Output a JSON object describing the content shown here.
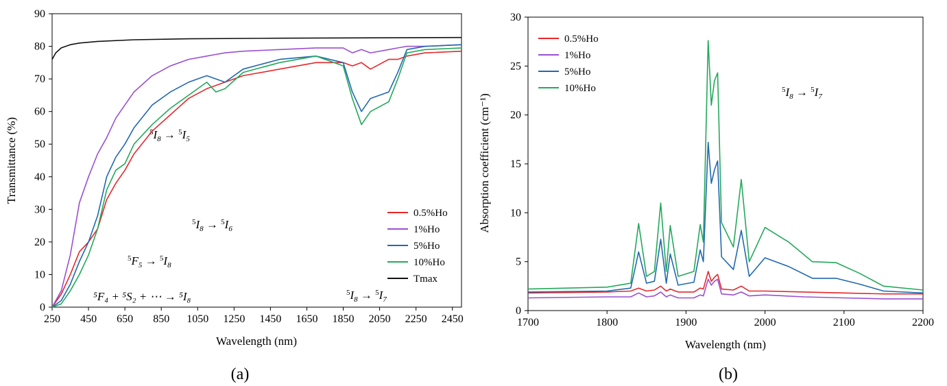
{
  "colors": {
    "red": "#e8262a",
    "purple": "#9a4fd0",
    "blue": "#2068b0",
    "green": "#22a85a",
    "black": "#111111"
  },
  "panels": [
    {
      "label": "(a)",
      "annotations": [
        {
          "id": "i5",
          "pre": "5",
          "sym": "I",
          "sub": "8",
          "arrow": " → ",
          "pre2": "5",
          "sym2": "I",
          "sub2": "5"
        },
        {
          "id": "i6",
          "pre": "5",
          "sym": "I",
          "sub": "8",
          "arrow": " → ",
          "pre2": "5",
          "sym2": "I",
          "sub2": "6"
        },
        {
          "id": "f5",
          "pre": "5",
          "sym": "F",
          "sub": "5",
          "arrow": " → ",
          "pre2": "5",
          "sym2": "I",
          "sub2": "8"
        },
        {
          "id": "f4",
          "text": "⁵F₄ + ⁵S₂ + ⋯ → ⁵I₈"
        },
        {
          "id": "i7",
          "pre": "5",
          "sym": "I",
          "sub": "8",
          "arrow": " → ",
          "pre2": "5",
          "sym2": "I",
          "sub2": "7"
        }
      ]
    },
    {
      "label": "(b)",
      "annotations": [
        {
          "id": "i7b",
          "pre": "5",
          "sym": "I",
          "sub": "8",
          "arrow": " → ",
          "pre2": "5",
          "sym2": "I",
          "sub2": "7"
        }
      ]
    }
  ],
  "chart_data": [
    {
      "type": "line",
      "xlabel": "Wavelength (nm)",
      "ylabel": "Transmittance (%)",
      "xlim": [
        250,
        2500
      ],
      "ylim": [
        0,
        90
      ],
      "xticks": [
        "250",
        "450",
        "650",
        "850",
        "1050",
        "1250",
        "1450",
        "1650",
        "1850",
        "2050",
        "2250",
        "2450"
      ],
      "yticks": [
        "0",
        "10",
        "20",
        "30",
        "40",
        "50",
        "60",
        "70",
        "80",
        "90"
      ],
      "legend_position": "bottom-right",
      "grid": false,
      "series": [
        {
          "name": "0.5%Ho",
          "color": "#e8262a",
          "x": [
            250,
            300,
            350,
            400,
            450,
            500,
            550,
            600,
            650,
            700,
            800,
            900,
            1000,
            1100,
            1150,
            1200,
            1300,
            1500,
            1700,
            1850,
            1900,
            1950,
            2000,
            2100,
            2150,
            2200,
            2300,
            2500
          ],
          "y": [
            0,
            4,
            10,
            17,
            20,
            24,
            33,
            38,
            42,
            47,
            54,
            59,
            64,
            67,
            68,
            69,
            71,
            73,
            75,
            75,
            74,
            75,
            73,
            76,
            76,
            77,
            78,
            78.5
          ]
        },
        {
          "name": "1%Ho",
          "color": "#9a4fd0",
          "x": [
            250,
            300,
            350,
            400,
            450,
            500,
            550,
            600,
            650,
            700,
            800,
            900,
            1000,
            1100,
            1150,
            1200,
            1300,
            1500,
            1700,
            1850,
            1900,
            1950,
            2000,
            2100,
            2150,
            2200,
            2300,
            2500
          ],
          "y": [
            0,
            5,
            16,
            32,
            40,
            47,
            52,
            58,
            62,
            66,
            71,
            74,
            76,
            77,
            77.5,
            78,
            78.5,
            79,
            79.5,
            79.5,
            78,
            79,
            78,
            79,
            79.5,
            80,
            80,
            80.5
          ]
        },
        {
          "name": "5%Ho",
          "color": "#2068b0",
          "x": [
            250,
            300,
            350,
            400,
            450,
            500,
            550,
            600,
            650,
            700,
            800,
            900,
            1000,
            1100,
            1150,
            1200,
            1300,
            1500,
            1700,
            1850,
            1900,
            1950,
            2000,
            2100,
            2150,
            2200,
            2300,
            2500
          ],
          "y": [
            0,
            2,
            7,
            14,
            20,
            28,
            40,
            46,
            50,
            55,
            62,
            66,
            69,
            71,
            70,
            69,
            73,
            76,
            77,
            75,
            66,
            60,
            64,
            66,
            72,
            79,
            80,
            80.5
          ]
        },
        {
          "name": "10%Ho",
          "color": "#22a85a",
          "x": [
            250,
            300,
            350,
            400,
            450,
            500,
            550,
            600,
            650,
            700,
            800,
            900,
            1000,
            1100,
            1150,
            1200,
            1300,
            1500,
            1700,
            1850,
            1900,
            1950,
            2000,
            2100,
            2150,
            2200,
            2300,
            2500
          ],
          "y": [
            0,
            1,
            5,
            10,
            16,
            24,
            36,
            42,
            44,
            50,
            56,
            61,
            65,
            69,
            66,
            67,
            72,
            75,
            77,
            74,
            64,
            56,
            60,
            63,
            70,
            78,
            79,
            79.5
          ]
        },
        {
          "name": "Tmax",
          "color": "#111111",
          "x": [
            250,
            270,
            300,
            350,
            400,
            500,
            700,
            1000,
            1500,
            2000,
            2500
          ],
          "y": [
            76,
            78,
            79.5,
            80.5,
            81,
            81.5,
            82,
            82.3,
            82.5,
            82.6,
            82.7
          ]
        }
      ]
    },
    {
      "type": "line",
      "xlabel": "Wavelength (nm)",
      "ylabel": "Absorption coefficient (cm⁻¹)",
      "xlim": [
        1700,
        2200
      ],
      "ylim": [
        0,
        30
      ],
      "xticks": [
        "1700",
        "1800",
        "1900",
        "2000",
        "2100",
        "2200"
      ],
      "yticks": [
        "0",
        "5",
        "10",
        "15",
        "20",
        "25",
        "30"
      ],
      "legend_position": "top-left",
      "grid": false,
      "series": [
        {
          "name": "0.5%Ho",
          "color": "#e8262a",
          "x": [
            1700,
            1800,
            1830,
            1840,
            1850,
            1860,
            1868,
            1875,
            1880,
            1890,
            1910,
            1918,
            1922,
            1928,
            1932,
            1936,
            1940,
            1945,
            1960,
            1970,
            1980,
            2000,
            2050,
            2100,
            2150,
            2200
          ],
          "y": [
            1.8,
            1.9,
            2.0,
            2.3,
            2.0,
            2.1,
            2.5,
            2.0,
            2.2,
            1.9,
            1.9,
            2.3,
            2.2,
            4.0,
            3.0,
            3.4,
            3.7,
            2.2,
            2.1,
            2.5,
            2.0,
            2.0,
            1.9,
            1.8,
            1.7,
            1.7
          ]
        },
        {
          "name": "1%Ho",
          "color": "#9a4fd0",
          "x": [
            1700,
            1800,
            1830,
            1840,
            1850,
            1860,
            1868,
            1875,
            1880,
            1890,
            1910,
            1918,
            1922,
            1928,
            1932,
            1936,
            1940,
            1945,
            1960,
            1970,
            1980,
            2000,
            2050,
            2100,
            2150,
            2200
          ],
          "y": [
            1.3,
            1.4,
            1.4,
            1.8,
            1.4,
            1.5,
            1.9,
            1.4,
            1.6,
            1.3,
            1.3,
            1.6,
            1.5,
            3.2,
            2.6,
            3.0,
            3.2,
            1.7,
            1.6,
            1.9,
            1.5,
            1.6,
            1.4,
            1.3,
            1.2,
            1.2
          ]
        },
        {
          "name": "5%Ho",
          "color": "#2068b0",
          "x": [
            1700,
            1800,
            1830,
            1840,
            1850,
            1860,
            1868,
            1875,
            1880,
            1890,
            1910,
            1918,
            1922,
            1928,
            1932,
            1936,
            1940,
            1945,
            1960,
            1970,
            1980,
            2000,
            2030,
            2060,
            2090,
            2120,
            2150,
            2200
          ],
          "y": [
            1.9,
            2.0,
            2.3,
            6.0,
            2.8,
            3.0,
            7.3,
            2.8,
            5.8,
            2.6,
            2.9,
            6.2,
            5.0,
            17.2,
            13.0,
            14.4,
            15.3,
            5.5,
            4.2,
            8.2,
            3.5,
            5.4,
            4.5,
            3.3,
            3.3,
            2.7,
            2.0,
            1.8
          ]
        },
        {
          "name": "10%Ho",
          "color": "#22a85a",
          "x": [
            1700,
            1800,
            1830,
            1840,
            1850,
            1860,
            1868,
            1875,
            1880,
            1890,
            1910,
            1918,
            1922,
            1928,
            1932,
            1936,
            1940,
            1945,
            1960,
            1970,
            1980,
            2000,
            2030,
            2060,
            2090,
            2120,
            2150,
            2200
          ],
          "y": [
            2.2,
            2.4,
            2.8,
            8.9,
            3.5,
            4.0,
            11.0,
            4.0,
            8.7,
            3.5,
            4.0,
            8.8,
            7.0,
            27.6,
            21.0,
            23.5,
            24.3,
            9.0,
            6.5,
            13.4,
            5.0,
            8.5,
            7.0,
            5.0,
            4.9,
            3.8,
            2.5,
            2.1
          ]
        }
      ]
    }
  ]
}
